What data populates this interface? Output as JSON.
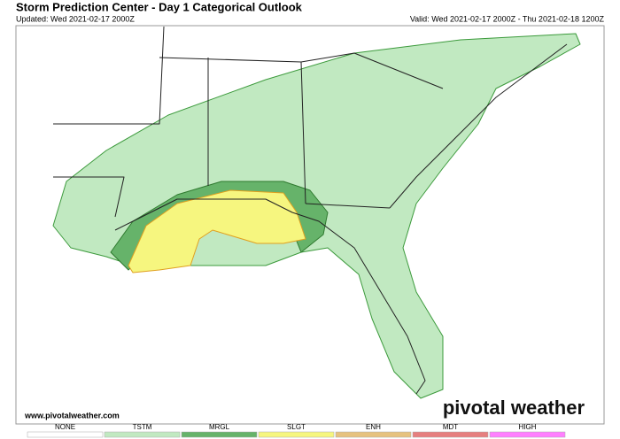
{
  "header": {
    "title": "Storm Prediction Center - Day 1 Categorical Outlook",
    "updated": "Updated: Wed 2021-02-17 2000Z",
    "valid": "Valid: Wed 2021-02-17 2000Z - Thu 2021-02-18 1200Z"
  },
  "footer": {
    "website": "www.pivotalweather.com",
    "brand": "pivotal weather"
  },
  "legend": [
    {
      "label": "NONE",
      "color": "#ffffff"
    },
    {
      "label": "TSTM",
      "color": "#c1e9c1"
    },
    {
      "label": "MRGL",
      "color": "#66b36a"
    },
    {
      "label": "SLGT",
      "color": "#f6f67f"
    },
    {
      "label": "ENH",
      "color": "#e6c27f"
    },
    {
      "label": "MDT",
      "color": "#e67f7f"
    },
    {
      "label": "HIGH",
      "color": "#ff7fff"
    }
  ]
}
